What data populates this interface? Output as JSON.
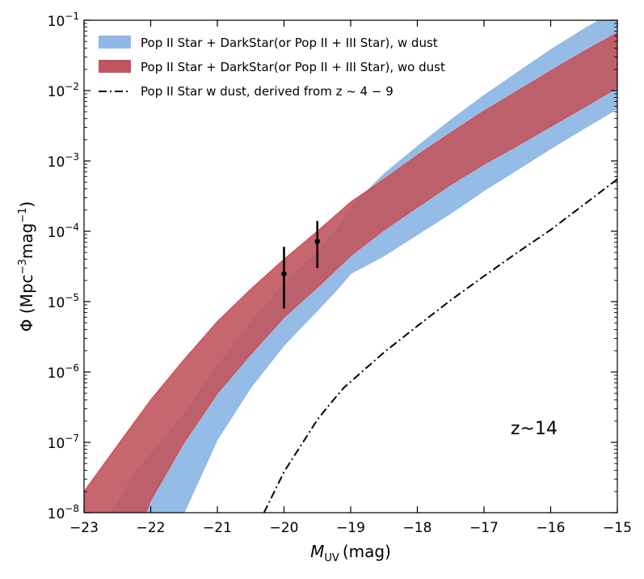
{
  "chart_data": {
    "type": "area",
    "title": "",
    "xlabel": "M_UV (mag)",
    "xlabel_main": "M",
    "xlabel_sub": "UV",
    "xlabel_unit": "(mag)",
    "ylabel": "Φ (Mpc⁻³mag⁻¹)",
    "ylabel_main": "Φ (Mpc",
    "ylabel_sup1": "−3",
    "ylabel_mid": "mag",
    "ylabel_sup2": "−1",
    "ylabel_end": ")",
    "xlim": [
      -23,
      -15
    ],
    "ylim": [
      1e-08,
      0.1
    ],
    "yscale": "log",
    "grid": false,
    "legend_position": "top-left",
    "x_ticks": [
      -23,
      -22,
      -21,
      -20,
      -19,
      -18,
      -17,
      -16,
      -15
    ],
    "x_tick_labels": [
      "−23",
      "−22",
      "−21",
      "−20",
      "−19",
      "−18",
      "−17",
      "−16",
      "−15"
    ],
    "y_ticks": [
      {
        "value": 1e-08,
        "base": "10",
        "exp": "−8"
      },
      {
        "value": 1e-07,
        "base": "10",
        "exp": "−7"
      },
      {
        "value": 1e-06,
        "base": "10",
        "exp": "−6"
      },
      {
        "value": 1e-05,
        "base": "10",
        "exp": "−5"
      },
      {
        "value": 0.0001,
        "base": "10",
        "exp": "−4"
      },
      {
        "value": 0.001,
        "base": "10",
        "exp": "−3"
      },
      {
        "value": 0.01,
        "base": "10",
        "exp": "−2"
      },
      {
        "value": 0.1,
        "base": "10",
        "exp": "−1"
      }
    ],
    "series": [
      {
        "name": "Pop II Star + DarkStar(or Pop II + III Star), w dust",
        "kind": "band",
        "color": "#8fb8e6",
        "edge_color": "#8fb8e6",
        "x": [
          -22.6,
          -22.2,
          -21.5,
          -21.0,
          -20.5,
          -20.0,
          -19.5,
          -19.2,
          -19.0,
          -18.5,
          -18.0,
          -17.5,
          -17.0,
          -16.5,
          -16.0,
          -15.5,
          -15.0
        ],
        "upper": [
          1e-08,
          4e-08,
          2.5e-07,
          1.2e-06,
          5e-06,
          1.8e-05,
          5e-05,
          0.00011,
          0.00022,
          0.00065,
          0.0016,
          0.0038,
          0.0085,
          0.018,
          0.038,
          0.075,
          0.14
        ],
        "lower": [
          null,
          1e-08,
          1e-08,
          1.1e-07,
          6e-07,
          2.4e-06,
          7.5e-06,
          1.5e-05,
          2.5e-05,
          4.5e-05,
          9e-05,
          0.00018,
          0.00038,
          0.00075,
          0.0015,
          0.0029,
          0.0055
        ]
      },
      {
        "name": "Pop II Star + DarkStar(or Pop II + III Star), wo dust",
        "kind": "band",
        "color": "#c0555e",
        "edge_color": "#d94a4a",
        "x": [
          -23.0,
          -22.5,
          -22.0,
          -21.5,
          -21.0,
          -20.5,
          -20.0,
          -19.5,
          -19.0,
          -18.5,
          -18.0,
          -17.5,
          -17.0,
          -16.5,
          -16.0,
          -15.5,
          -15.0
        ],
        "upper": [
          2e-08,
          9e-08,
          4e-07,
          1.5e-06,
          5.2e-06,
          1.5e-05,
          4e-05,
          0.0001,
          0.00026,
          0.00055,
          0.0012,
          0.0025,
          0.0051,
          0.0098,
          0.019,
          0.036,
          0.066
        ],
        "lower": [
          1e-09,
          1e-09,
          1.5e-08,
          1e-07,
          5e-07,
          1.8e-06,
          6e-06,
          1.6e-05,
          4.5e-05,
          0.000105,
          0.00022,
          0.00046,
          0.0009,
          0.00165,
          0.0031,
          0.0058,
          0.011
        ]
      },
      {
        "name": "Pop II Star w dust, derived from z ~ 4 − 9",
        "kind": "line",
        "style": "dashdot",
        "color": "#000000",
        "x": [
          -20.3,
          -20.0,
          -19.5,
          -19.3,
          -19.1,
          -18.5,
          -18.0,
          -17.5,
          -17.0,
          -16.5,
          -16.0,
          -15.5,
          -15.0
        ],
        "y": [
          1e-08,
          3.8e-08,
          2.1e-07,
          3.6e-07,
          6e-07,
          1.9e-06,
          4.5e-06,
          1.05e-05,
          2.3e-05,
          5e-05,
          0.000105,
          0.00024,
          0.00055
        ]
      }
    ],
    "data_points": [
      {
        "x": -20.0,
        "y": 2.5e-05,
        "ylow": 8e-06,
        "yhigh": 6e-05
      },
      {
        "x": -19.5,
        "y": 7.2e-05,
        "ylow": 3e-05,
        "yhigh": 0.00014
      }
    ],
    "annotations": [
      {
        "text": "z~14",
        "x": -16.6,
        "y": 1.3e-07
      }
    ],
    "legend": [
      {
        "label": "Pop II Star + DarkStar(or Pop II + III Star), w dust",
        "swatch": "patch",
        "color": "#8fb8e6"
      },
      {
        "label": "Pop II Star + DarkStar(or Pop II + III Star), wo dust",
        "swatch": "patch",
        "color": "#c0555e"
      },
      {
        "label": "Pop II Star w dust, derived from z ~ 4 − 9",
        "swatch": "dashdot",
        "color": "#000000"
      }
    ]
  }
}
